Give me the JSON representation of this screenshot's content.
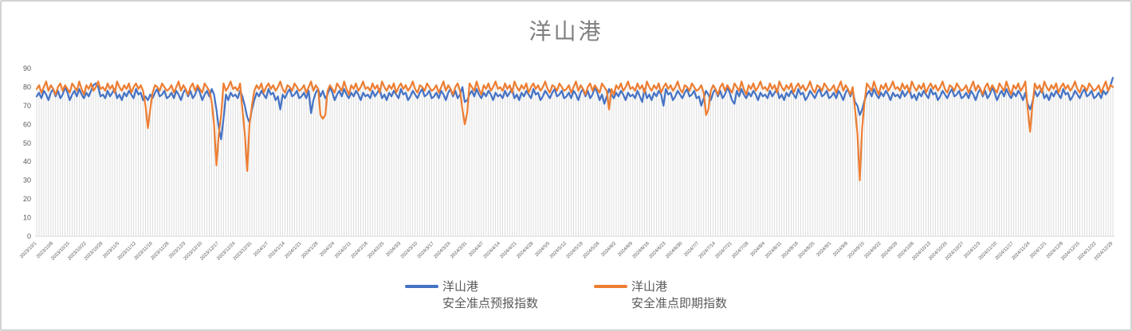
{
  "window": {
    "background": "#ffffff",
    "border_color": "#d2d2d2"
  },
  "chart_data": {
    "type": "line",
    "title": "洋山港",
    "title_color": "#7f7f7f",
    "axis_label_color": "#595959",
    "gridline_color": "#d9d9d9",
    "grid": "vertical-drop-lines-per-day",
    "legend_position": "bottom",
    "ylim": [
      0,
      90
    ],
    "y_ticks": [
      0,
      10,
      20,
      30,
      40,
      50,
      60,
      70,
      80,
      90
    ],
    "x_start_date": "2023/10/1",
    "x_end_date": "2024/12/29",
    "x_point_interval": "daily",
    "x_tick_interval_days": 7,
    "x_tick_labels": [
      "2023/10/1",
      "2023/10/8",
      "2023/10/15",
      "2023/10/22",
      "2023/10/29",
      "2023/11/5",
      "2023/11/12",
      "2023/11/19",
      "2023/11/26",
      "2023/12/3",
      "2023/12/10",
      "2023/12/17",
      "2023/12/24",
      "2023/12/31",
      "2024/1/7",
      "2024/1/14",
      "2024/1/21",
      "2024/1/28",
      "2024/2/4",
      "2024/2/11",
      "2024/2/18",
      "2024/2/25",
      "2024/3/3",
      "2024/3/10",
      "2024/3/17",
      "2024/3/24",
      "2024/3/31",
      "2024/4/7",
      "2024/4/14",
      "2024/4/21",
      "2024/4/28",
      "2024/5/5",
      "2024/5/12",
      "2024/5/19",
      "2024/5/26",
      "2024/6/2",
      "2024/6/9",
      "2024/6/16",
      "2024/6/23",
      "2024/6/30",
      "2024/7/7",
      "2024/7/14",
      "2024/7/21",
      "2024/7/28",
      "2024/8/4",
      "2024/8/11",
      "2024/8/18",
      "2024/8/25",
      "2024/9/1",
      "2024/9/8",
      "2024/9/15",
      "2024/9/22",
      "2024/9/29",
      "2024/10/6",
      "2024/10/13",
      "2024/10/20",
      "2024/10/27",
      "2024/11/3",
      "2024/11/10",
      "2024/11/17",
      "2024/11/24",
      "2024/12/1",
      "2024/12/8",
      "2024/12/15",
      "2024/12/22",
      "2024/12/29"
    ],
    "series": [
      {
        "name_line1": "洋山港",
        "name_line2": "安全准点预报指数",
        "color": "#4472C4",
        "values": [
          75,
          77,
          74,
          78,
          76,
          73,
          77,
          79,
          75,
          78,
          74,
          76,
          80,
          77,
          73,
          76,
          78,
          75,
          79,
          76,
          74,
          77,
          75,
          78,
          81,
          82,
          80,
          75,
          76,
          74,
          78,
          75,
          77,
          79,
          74,
          76,
          73,
          77,
          75,
          78,
          76,
          74,
          79,
          76,
          77,
          73,
          75,
          73,
          76,
          74,
          77,
          79,
          75,
          76,
          78,
          74,
          75,
          77,
          74,
          78,
          76,
          73,
          77,
          79,
          75,
          78,
          74,
          76,
          80,
          77,
          73,
          76,
          78,
          75,
          79,
          76,
          68,
          58,
          52,
          63,
          76,
          73,
          77,
          75,
          76,
          74,
          78,
          75,
          70,
          64,
          61,
          68,
          73,
          77,
          75,
          78,
          76,
          74,
          79,
          76,
          77,
          73,
          75,
          68,
          76,
          74,
          77,
          79,
          75,
          76,
          78,
          74,
          75,
          77,
          74,
          78,
          66,
          73,
          77,
          79,
          75,
          78,
          74,
          76,
          80,
          77,
          73,
          76,
          78,
          75,
          79,
          76,
          74,
          77,
          75,
          78,
          76,
          73,
          77,
          75,
          76,
          74,
          78,
          75,
          77,
          79,
          74,
          76,
          73,
          77,
          75,
          78,
          76,
          74,
          79,
          76,
          77,
          73,
          75,
          78,
          76,
          74,
          77,
          79,
          75,
          76,
          78,
          74,
          75,
          77,
          74,
          78,
          76,
          73,
          77,
          79,
          75,
          78,
          74,
          76,
          80,
          72,
          73,
          76,
          78,
          75,
          79,
          76,
          74,
          77,
          75,
          78,
          76,
          73,
          77,
          75,
          76,
          74,
          78,
          75,
          77,
          79,
          74,
          76,
          73,
          77,
          75,
          78,
          76,
          74,
          79,
          76,
          77,
          73,
          75,
          78,
          76,
          74,
          77,
          79,
          75,
          76,
          78,
          74,
          75,
          77,
          74,
          78,
          76,
          73,
          77,
          79,
          75,
          78,
          74,
          76,
          80,
          77,
          73,
          76,
          71,
          75,
          79,
          76,
          74,
          77,
          75,
          78,
          76,
          73,
          77,
          75,
          76,
          74,
          78,
          75,
          72,
          79,
          74,
          76,
          73,
          77,
          75,
          78,
          76,
          70,
          79,
          76,
          77,
          73,
          75,
          78,
          76,
          74,
          77,
          79,
          75,
          76,
          78,
          74,
          75,
          70,
          74,
          78,
          76,
          73,
          77,
          79,
          75,
          78,
          74,
          76,
          80,
          77,
          73,
          71,
          78,
          75,
          79,
          76,
          74,
          77,
          75,
          78,
          76,
          73,
          77,
          75,
          76,
          74,
          78,
          75,
          77,
          79,
          74,
          76,
          73,
          77,
          75,
          78,
          76,
          74,
          79,
          76,
          77,
          73,
          75,
          78,
          76,
          74,
          77,
          79,
          75,
          76,
          78,
          74,
          75,
          77,
          74,
          78,
          76,
          73,
          77,
          79,
          75,
          78,
          72,
          70,
          65,
          68,
          73,
          76,
          78,
          75,
          79,
          76,
          74,
          77,
          75,
          78,
          76,
          73,
          77,
          75,
          76,
          74,
          78,
          75,
          77,
          79,
          74,
          76,
          73,
          77,
          75,
          78,
          76,
          74,
          79,
          76,
          77,
          73,
          75,
          78,
          76,
          74,
          77,
          79,
          75,
          76,
          78,
          74,
          75,
          77,
          74,
          78,
          76,
          73,
          77,
          79,
          75,
          78,
          74,
          76,
          80,
          77,
          73,
          76,
          78,
          75,
          79,
          76,
          74,
          77,
          75,
          78,
          76,
          73,
          77,
          71,
          68,
          72,
          78,
          75,
          77,
          79,
          74,
          76,
          73,
          77,
          75,
          78,
          76,
          74,
          79,
          76,
          77,
          73,
          75,
          78,
          76,
          74,
          77,
          79,
          75,
          76,
          78,
          74,
          75,
          77,
          74,
          78,
          76,
          78,
          81,
          85
        ]
      },
      {
        "name_line1": "洋山港",
        "name_line2": "安全准点即期指数",
        "color": "#ED7D31",
        "values": [
          79,
          81,
          77,
          80,
          83,
          78,
          81,
          79,
          76,
          80,
          82,
          78,
          81,
          79,
          77,
          82,
          80,
          78,
          83,
          79,
          76,
          81,
          79,
          82,
          78,
          80,
          83,
          79,
          80,
          78,
          82,
          79,
          81,
          77,
          83,
          80,
          78,
          81,
          79,
          82,
          77,
          80,
          82,
          79,
          81,
          78,
          70,
          58,
          68,
          77,
          81,
          80,
          78,
          82,
          80,
          78,
          79,
          81,
          77,
          80,
          83,
          78,
          81,
          79,
          76,
          80,
          82,
          78,
          81,
          79,
          77,
          82,
          80,
          78,
          72,
          60,
          38,
          55,
          65,
          82,
          78,
          80,
          83,
          79,
          80,
          78,
          82,
          68,
          55,
          35,
          60,
          70,
          78,
          81,
          79,
          82,
          77,
          80,
          82,
          79,
          81,
          78,
          80,
          83,
          79,
          77,
          81,
          80,
          78,
          82,
          80,
          78,
          79,
          81,
          77,
          80,
          83,
          78,
          81,
          79,
          65,
          63,
          65,
          78,
          81,
          79,
          77,
          82,
          80,
          78,
          83,
          79,
          76,
          81,
          79,
          82,
          78,
          80,
          83,
          79,
          80,
          78,
          82,
          79,
          81,
          77,
          83,
          80,
          78,
          81,
          79,
          82,
          77,
          80,
          82,
          79,
          81,
          78,
          80,
          83,
          79,
          77,
          81,
          80,
          78,
          82,
          80,
          78,
          79,
          81,
          77,
          80,
          83,
          78,
          81,
          79,
          76,
          80,
          82,
          78,
          68,
          60,
          66,
          82,
          80,
          78,
          83,
          79,
          76,
          81,
          79,
          82,
          78,
          80,
          83,
          79,
          80,
          78,
          82,
          79,
          81,
          77,
          83,
          80,
          78,
          81,
          79,
          82,
          77,
          80,
          82,
          79,
          81,
          78,
          80,
          83,
          79,
          77,
          81,
          80,
          78,
          82,
          80,
          78,
          79,
          81,
          77,
          80,
          83,
          78,
          81,
          79,
          76,
          80,
          82,
          78,
          81,
          79,
          77,
          82,
          80,
          78,
          68,
          79,
          76,
          81,
          79,
          82,
          78,
          80,
          83,
          79,
          80,
          78,
          82,
          79,
          81,
          77,
          83,
          80,
          78,
          81,
          79,
          82,
          77,
          80,
          82,
          79,
          81,
          78,
          80,
          83,
          79,
          77,
          81,
          80,
          78,
          82,
          80,
          78,
          79,
          81,
          77,
          65,
          68,
          78,
          81,
          79,
          76,
          80,
          82,
          78,
          81,
          79,
          77,
          82,
          80,
          78,
          83,
          79,
          76,
          81,
          79,
          82,
          78,
          80,
          83,
          79,
          80,
          78,
          82,
          79,
          81,
          77,
          83,
          80,
          78,
          81,
          79,
          82,
          77,
          80,
          82,
          79,
          81,
          78,
          80,
          83,
          79,
          77,
          81,
          80,
          78,
          82,
          80,
          78,
          79,
          81,
          77,
          80,
          83,
          78,
          81,
          79,
          76,
          80,
          68,
          55,
          30,
          58,
          72,
          82,
          80,
          78,
          83,
          79,
          76,
          81,
          79,
          82,
          78,
          80,
          83,
          79,
          80,
          78,
          82,
          79,
          81,
          77,
          83,
          80,
          78,
          81,
          79,
          82,
          77,
          80,
          82,
          79,
          81,
          78,
          80,
          83,
          79,
          77,
          81,
          80,
          78,
          82,
          80,
          78,
          79,
          81,
          77,
          80,
          83,
          78,
          81,
          79,
          76,
          80,
          82,
          78,
          81,
          79,
          77,
          82,
          80,
          78,
          83,
          79,
          76,
          81,
          79,
          82,
          78,
          80,
          83,
          68,
          56,
          70,
          82,
          79,
          81,
          77,
          83,
          80,
          78,
          81,
          79,
          82,
          77,
          80,
          82,
          79,
          81,
          78,
          80,
          83,
          79,
          77,
          81,
          80,
          78,
          82,
          80,
          78,
          79,
          81,
          77,
          80,
          83,
          78,
          81,
          80
        ]
      }
    ]
  }
}
